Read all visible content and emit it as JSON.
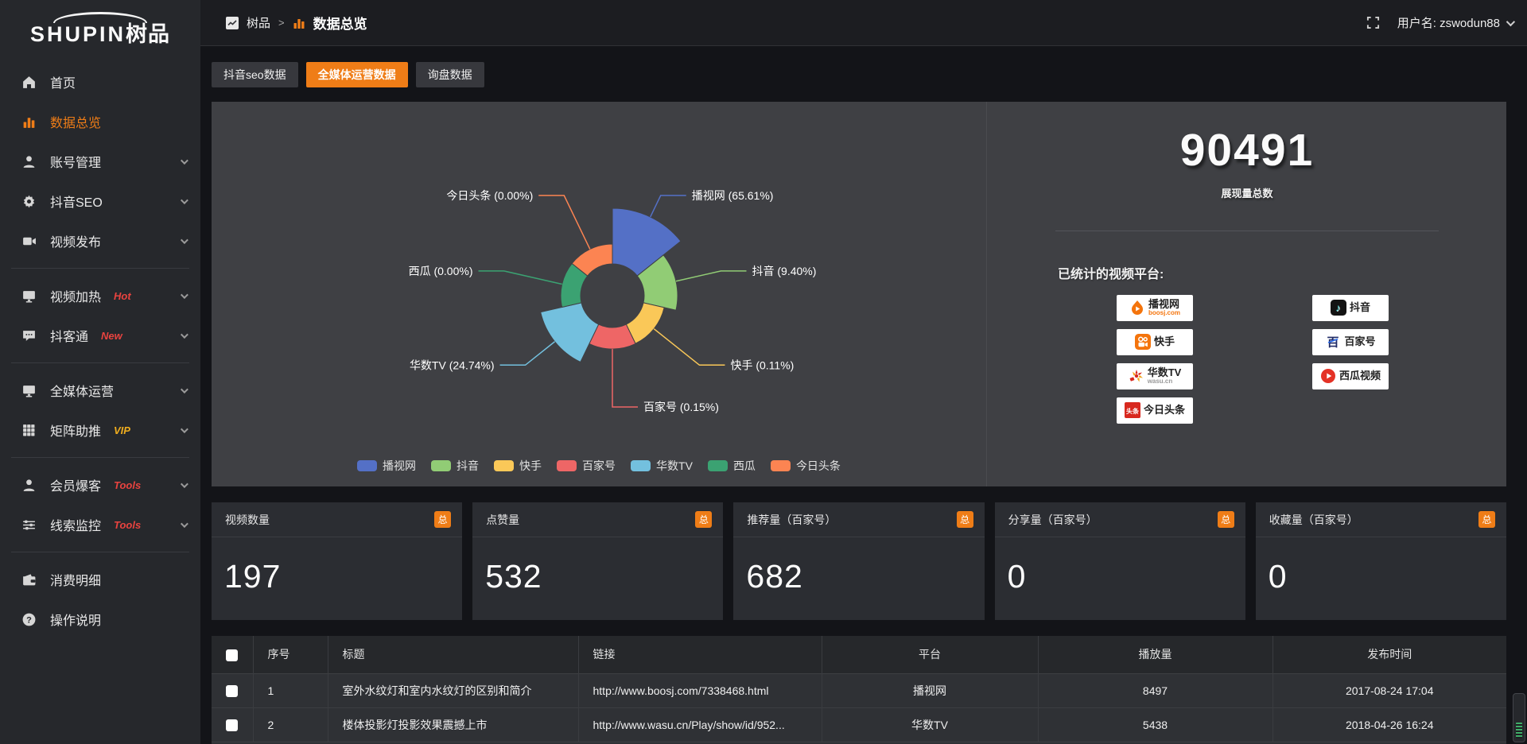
{
  "brand": {
    "logo_en": "SHUPIN",
    "logo_cn": "树品"
  },
  "topbar": {
    "breadcrumb": [
      {
        "label": "树品"
      },
      {
        "label": "数据总览"
      }
    ],
    "separator": ">",
    "username": "用户名: zswodun88"
  },
  "sidebar": {
    "items": [
      {
        "key": "home",
        "icon": "home",
        "label": "首页"
      },
      {
        "key": "data-overview",
        "icon": "chart-bars",
        "label": "数据总览",
        "active": true
      },
      {
        "key": "account-manage",
        "icon": "user",
        "label": "账号管理",
        "chevron": true
      },
      {
        "key": "douyin-seo",
        "icon": "gear",
        "label": "抖音SEO",
        "chevron": true
      },
      {
        "key": "video-publish",
        "icon": "video",
        "label": "视频发布",
        "chevron": true
      },
      {
        "divider": true
      },
      {
        "key": "video-heat",
        "icon": "monitor",
        "label": "视频加热",
        "badge": "Hot",
        "badge_color": "#e8433f",
        "chevron": true
      },
      {
        "key": "doketong",
        "icon": "chat",
        "label": "抖客通",
        "badge": "New",
        "badge_color": "#e8433f",
        "chevron": true
      },
      {
        "divider": true
      },
      {
        "key": "omni-media",
        "icon": "monitor",
        "label": "全媒体运营",
        "chevron": true
      },
      {
        "key": "matrix-boost",
        "icon": "grid",
        "label": "矩阵助推",
        "badge": "VIP",
        "badge_color": "#efad1e",
        "chevron": true
      },
      {
        "divider": true
      },
      {
        "key": "member-baoke",
        "icon": "user",
        "label": "会员爆客",
        "badge": "Tools",
        "badge_color": "#e8433f",
        "chevron": true
      },
      {
        "key": "clue-monitor",
        "icon": "sliders",
        "label": "线索监控",
        "badge": "Tools",
        "badge_color": "#e8433f",
        "chevron": true
      },
      {
        "divider": true
      },
      {
        "key": "consume-detail",
        "icon": "wallet",
        "label": "消费明细"
      },
      {
        "key": "help",
        "icon": "help",
        "label": "操作说明"
      }
    ]
  },
  "tabs": [
    {
      "key": "douyin-seo-data",
      "label": "抖音seo数据",
      "active": false
    },
    {
      "key": "omni-media-data",
      "label": "全媒体运营数据",
      "active": true
    },
    {
      "key": "inquiry-data",
      "label": "询盘数据",
      "active": false
    }
  ],
  "chart_data": {
    "type": "pie",
    "subtype": "nightingale-rose",
    "title": "",
    "label_format": "{name} ({percent}%)",
    "legend_position": "bottom",
    "items": [
      {
        "name": "播视网",
        "percent": 65.61,
        "color": "#5470c6"
      },
      {
        "name": "抖音",
        "percent": 9.4,
        "color": "#91cc75"
      },
      {
        "name": "快手",
        "percent": 0.11,
        "color": "#fac858"
      },
      {
        "name": "百家号",
        "percent": 0.15,
        "color": "#ee6666"
      },
      {
        "name": "华数TV",
        "percent": 24.74,
        "color": "#73c0de"
      },
      {
        "name": "西瓜",
        "percent": 0.0,
        "color": "#3ba272"
      },
      {
        "name": "今日头条",
        "percent": 0.0,
        "color": "#fc8452"
      }
    ]
  },
  "overview": {
    "total_value": "90491",
    "total_label": "展现量总数",
    "platforms_title": "已统计的视频平台:",
    "platform_columns": [
      [
        {
          "key": "boosj",
          "name": "播视网",
          "sub": "boosj.com"
        },
        {
          "key": "kuaishou",
          "name": "快手"
        },
        {
          "key": "wasu",
          "name": "华数TV",
          "sub": "wasu.cn"
        },
        {
          "key": "toutiao",
          "name": "今日头条"
        }
      ],
      [
        {
          "key": "douyin",
          "name": "抖音"
        },
        {
          "key": "baijiahao",
          "name": "百家号"
        },
        {
          "key": "xigua",
          "name": "西瓜视频"
        }
      ]
    ]
  },
  "stat_cards": [
    {
      "key": "video-count",
      "label": "视频数量",
      "badge": "总",
      "value": "197"
    },
    {
      "key": "like-count",
      "label": "点赞量",
      "badge": "总",
      "value": "532"
    },
    {
      "key": "recommend",
      "label": "推荐量（百家号）",
      "badge": "总",
      "value": "682"
    },
    {
      "key": "share-count",
      "label": "分享量（百家号）",
      "badge": "总",
      "value": "0"
    },
    {
      "key": "favorite",
      "label": "收藏量（百家号）",
      "badge": "总",
      "value": "0"
    }
  ],
  "table": {
    "columns": [
      "序号",
      "标题",
      "链接",
      "平台",
      "播放量",
      "发布时间"
    ],
    "rows": [
      {
        "no": "1",
        "title": "室外水纹灯和室内水纹灯的区别和简介",
        "link": "http://www.boosj.com/7338468.html",
        "platform": "播视网",
        "plays": "8497",
        "time": "2017-08-24 17:04"
      },
      {
        "no": "2",
        "title": "楼体投影灯投影效果震撼上市",
        "link": "http://www.wasu.cn/Play/show/id/952...",
        "platform": "华数TV",
        "plays": "5438",
        "time": "2018-04-26 16:24"
      }
    ]
  },
  "colors": {
    "accent": "#ef7d17",
    "link": "#e5862f",
    "panel": "#3f4044"
  }
}
